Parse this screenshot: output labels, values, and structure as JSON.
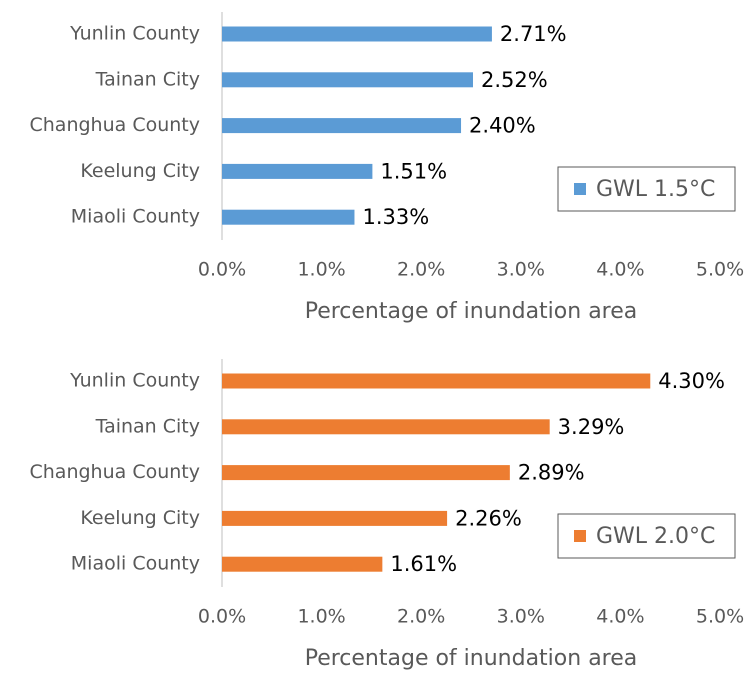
{
  "chart_data": [
    {
      "type": "bar",
      "orientation": "horizontal",
      "categories": [
        "Yunlin County",
        "Tainan City",
        "Changhua County",
        "Keelung City",
        "Miaoli County"
      ],
      "series": [
        {
          "name": "GWL 1.5°C",
          "color": "#5b9bd5",
          "values": [
            2.71,
            2.52,
            2.4,
            1.51,
            1.33
          ],
          "value_labels": [
            "2.71%",
            "2.52%",
            "2.40%",
            "1.51%",
            "1.33%"
          ]
        }
      ],
      "xlabel": "Percentage of inundation area",
      "xlim": [
        0,
        5
      ],
      "xticks": [
        {
          "value": 0,
          "label": "0.0%"
        },
        {
          "value": 1,
          "label": "1.0%"
        },
        {
          "value": 2,
          "label": "2.0%"
        },
        {
          "value": 3,
          "label": "3.0%"
        },
        {
          "value": 4,
          "label": "4.0%"
        },
        {
          "value": 5,
          "label": "5.0%"
        }
      ],
      "legend": "lower right"
    },
    {
      "type": "bar",
      "orientation": "horizontal",
      "categories": [
        "Yunlin County",
        "Tainan City",
        "Changhua County",
        "Keelung City",
        "Miaoli County"
      ],
      "series": [
        {
          "name": "GWL 2.0°C",
          "color": "#ed7d31",
          "values": [
            4.3,
            3.29,
            2.89,
            2.26,
            1.61
          ],
          "value_labels": [
            "4.30%",
            "3.29%",
            "2.89%",
            "2.26%",
            "1.61%"
          ]
        }
      ],
      "xlabel": "Percentage of inundation area",
      "xlim": [
        0,
        5
      ],
      "xticks": [
        {
          "value": 0,
          "label": "0.0%"
        },
        {
          "value": 1,
          "label": "1.0%"
        },
        {
          "value": 2,
          "label": "2.0%"
        },
        {
          "value": 3,
          "label": "3.0%"
        },
        {
          "value": 4,
          "label": "4.0%"
        },
        {
          "value": 5,
          "label": "5.0%"
        }
      ],
      "legend": "lower right"
    }
  ]
}
